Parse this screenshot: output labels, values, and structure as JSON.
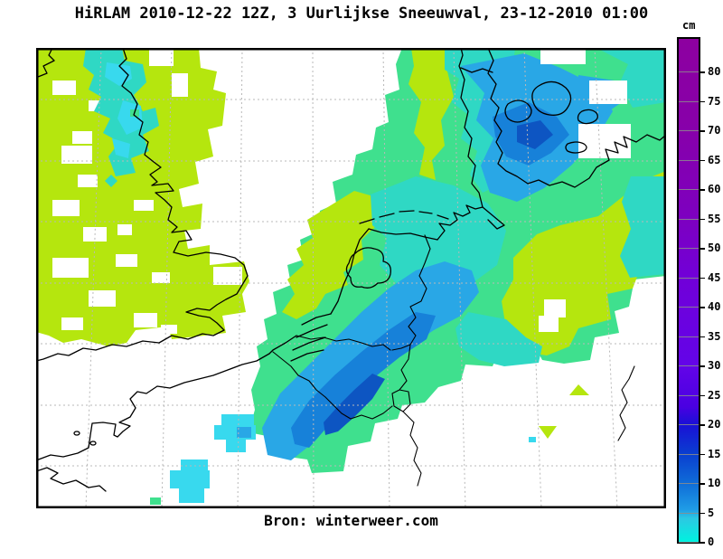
{
  "header": {
    "title": "HiRLAM 2010-12-22 12Z, 3 Uurlijkse Sneeuwval, 23-12-2010 01:00",
    "unit_label": "cm"
  },
  "footer": {
    "source": "Bron: winterweer.com"
  },
  "colorbar": {
    "unit": "cm",
    "min": 0,
    "max": 85.6,
    "ticks": [
      0,
      5,
      10,
      15,
      20,
      25,
      30,
      35,
      40,
      45,
      50,
      55,
      60,
      65,
      70,
      75,
      80
    ],
    "gradient": [
      {
        "value": 0,
        "color": "#00f2e0"
      },
      {
        "value": 4,
        "color": "#2cc8e2"
      },
      {
        "value": 5.5,
        "color": "#1f9ce6"
      },
      {
        "value": 10,
        "color": "#0f6cd8"
      },
      {
        "value": 15,
        "color": "#0a3ed0"
      },
      {
        "value": 20,
        "color": "#1a10d6"
      },
      {
        "value": 23,
        "color": "#4a00e2"
      },
      {
        "value": 30,
        "color": "#6304e8"
      },
      {
        "value": 45,
        "color": "#7100d8"
      },
      {
        "value": 55,
        "color": "#7d00c0"
      },
      {
        "value": 70,
        "color": "#8700aa"
      },
      {
        "value": 85.6,
        "color": "#8d00a0"
      }
    ]
  },
  "map": {
    "model": "HiRLAM",
    "run": "2010-12-22 12Z",
    "valid_time": "23-12-2010 01:00",
    "quantity": "3 Uurlijkse Sneeuwval (3-hourly snowfall)",
    "palette": {
      "chartreuse": "#b5e60e",
      "green": "#3fe08e",
      "turquoise": "#2fd8c4",
      "cyan2": "#38d9ee",
      "skyblue": "#29a7e6",
      "blue": "#1781d9",
      "deepblue": "#0d55c2",
      "grid": "#b8b8b8",
      "coast": "#000000"
    },
    "regions": [
      {
        "name": "England",
        "approx_cm": "0-3",
        "color_key": "chartreuse/turquoise"
      },
      {
        "name": "Netherlands (coast)",
        "approx_cm": "0-2",
        "color_key": "chartreuse"
      },
      {
        "name": "Belgium / Ardennen",
        "approx_cm": "5-15",
        "color_key": "skyblue/blue/deepblue"
      },
      {
        "name": "NW Germany / Denmark",
        "approx_cm": "3-15",
        "color_key": "turquoise/skyblue/blue"
      },
      {
        "name": "Central Germany",
        "approx_cm": "0-3",
        "color_key": "green/chartreuse"
      },
      {
        "name": "NE France",
        "approx_cm": "0-5",
        "color_key": "cyan patches"
      }
    ]
  },
  "chart_data": {
    "type": "map",
    "title": "HiRLAM 2010-12-22 12Z, 3 Uurlijkse Sneeuwval, 23-12-2010 01:00",
    "legend_unit": "cm",
    "legend_ticks": [
      0,
      5,
      10,
      15,
      20,
      25,
      30,
      35,
      40,
      45,
      50,
      55,
      60,
      65,
      70,
      75,
      80
    ]
  }
}
